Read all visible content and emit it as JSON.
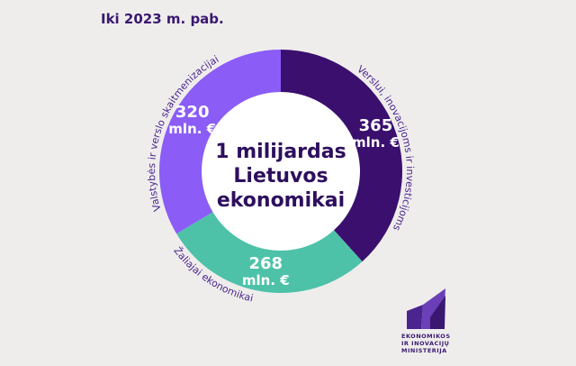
{
  "chart_data": {
    "type": "donut",
    "title": "Iki 2023 m. pab.",
    "center_text": "1 milijardas\nLietuvos\nekonomikai",
    "categories": [
      "Verslui, inovacijoms ir investicijoms",
      "Žaliajai ekonomikai",
      "Valstybės ir verslo skaitmenizacijai"
    ],
    "values": [
      365,
      268,
      320
    ],
    "value_labels": [
      "365\nmln. €",
      "268\nmln. €",
      "320\nmln. €"
    ],
    "colors": [
      "#3a0f6e",
      "#4dc2a8",
      "#8b5cf6"
    ]
  },
  "logo": {
    "text": "EKONOMIKOS\nIR INOVACIJŲ\nMINISTERIJA"
  }
}
